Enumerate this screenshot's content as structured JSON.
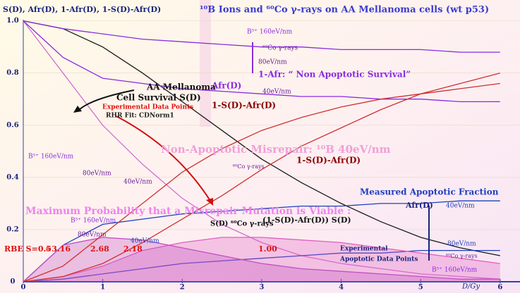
{
  "chart_data": {
    "type": "line",
    "title": "¹⁰B Ions and ⁶⁰Co γ-rays on AA Mellanoma cells (wt p53)",
    "ylabel": "S(D), Afr(D), 1-Afr(D), 1-S(D)-Afr(D)",
    "xlabel": "D/Gy",
    "x": [
      0,
      0.5,
      1,
      1.5,
      2,
      2.5,
      3,
      3.5,
      4,
      4.5,
      5,
      5.5,
      6
    ],
    "xlim": [
      0,
      6.25
    ],
    "ylim": [
      0,
      1.08
    ],
    "xticks": [
      0,
      1,
      2,
      3,
      4,
      5,
      6
    ],
    "yticks": [
      0,
      0.2,
      0.4,
      0.6,
      0.8,
      {
        "value": 1,
        "label": "1.0"
      }
    ],
    "series": [
      {
        "color": "#1a1a1a",
        "fill": false,
        "values": [
          1,
          0.97,
          0.9,
          0.8,
          0.69,
          0.58,
          0.47,
          0.38,
          0.3,
          0.23,
          0.17,
          0.13,
          0.1
        ]
      },
      {
        "color": "#d070d0",
        "fill": false,
        "values": [
          1,
          0.8,
          0.6,
          0.45,
          0.32,
          0.22,
          0.15,
          0.1,
          0.07,
          0.05,
          0.03,
          0.02,
          0.01
        ]
      },
      {
        "color": "#8a2be2",
        "fill": false,
        "values": [
          1,
          0.97,
          0.95,
          0.93,
          0.92,
          0.91,
          0.9,
          0.9,
          0.89,
          0.89,
          0.89,
          0.88,
          0.88
        ]
      },
      {
        "color": "#8a2be2",
        "fill": false,
        "values": [
          1,
          0.86,
          0.78,
          0.76,
          0.74,
          0.73,
          0.72,
          0.71,
          0.71,
          0.7,
          0.7,
          0.69,
          0.69
        ]
      },
      {
        "color": "#1f3fbf",
        "fill": false,
        "values": [
          0,
          0.01,
          0.03,
          0.05,
          0.07,
          0.08,
          0.09,
          0.1,
          0.11,
          0.11,
          0.12,
          0.12,
          0.12
        ]
      },
      {
        "color": "#1f3fbf",
        "fill": false,
        "values": [
          0,
          0.14,
          0.22,
          0.24,
          0.26,
          0.27,
          0.28,
          0.29,
          0.29,
          0.3,
          0.3,
          0.31,
          0.31
        ]
      },
      {
        "color": "#e060c0",
        "fill": true,
        "values": [
          0,
          0.02,
          0.06,
          0.12,
          0.15,
          0.17,
          0.17,
          0.16,
          0.15,
          0.13,
          0.11,
          0.09,
          0.07
        ]
      },
      {
        "color": "#c050c0",
        "fill": true,
        "values": [
          0,
          0.14,
          0.17,
          0.16,
          0.13,
          0.1,
          0.07,
          0.05,
          0.04,
          0.03,
          0.02,
          0.01,
          0.01
        ]
      },
      {
        "color": "#d03030",
        "fill": false,
        "values": [
          0,
          0.02,
          0.07,
          0.15,
          0.24,
          0.33,
          0.43,
          0.52,
          0.59,
          0.66,
          0.72,
          0.76,
          0.8
        ]
      },
      {
        "color": "#d03030",
        "fill": false,
        "values": [
          0,
          0.06,
          0.18,
          0.3,
          0.42,
          0.51,
          0.58,
          0.63,
          0.67,
          0.7,
          0.72,
          0.74,
          0.76
        ]
      }
    ],
    "annotations": [
      {
        "text": "B⁵⁺ 160eV/nm",
        "color": "#8a2be2"
      },
      {
        "text": "⁶⁰Co γ-rays",
        "color": "#6a1b9a"
      },
      {
        "text": "80eV/nm",
        "color": "#6a1b9a"
      },
      {
        "text": "1-Afr: “ Non Apoptotic Survival”",
        "color": "#8a2be2"
      },
      {
        "text": "Afr(D)",
        "color": "#8a2be2"
      },
      {
        "text": "40eV/nm",
        "color": "#6a1b9a"
      },
      {
        "text": "AA Mellanoma",
        "color": "#111111"
      },
      {
        "text": "Cell Survival S(D)",
        "color": "#111111"
      },
      {
        "text": "Experimental Data Points",
        "color": "#e01010"
      },
      {
        "text": "RHR Fit: CDNorm1",
        "color": "#222222"
      },
      {
        "text": "1-S(D)-Afr(D)",
        "color": "#8b0000"
      },
      {
        "text": "B⁵⁺ 160eV/nm",
        "color": "#8a2be2"
      },
      {
        "text": "80eV/nm",
        "color": "#6a1b9a"
      },
      {
        "text": "40eV/nm",
        "color": "#6a1b9a"
      },
      {
        "text": "Non-Apoptotic Misrepair: ¹⁰B 40eV/nm",
        "color": "#f0a0d8"
      },
      {
        "text": "⁶⁰Co γ-rays",
        "color": "#6a1b9a"
      },
      {
        "text": "1-S(D)-Afr(D)",
        "color": "#8b0000"
      },
      {
        "text": "Measured Apoptotic Fraction",
        "color": "#1f3fbf"
      },
      {
        "text": "Afr(D)",
        "color": "#1a237e"
      },
      {
        "text": "40eV/nm",
        "color": "#1f3fbf"
      },
      {
        "text": "Maximum Probability  that a Misrepair Mutation is Viable :",
        "color": "#ee82ee"
      },
      {
        "text": "B⁵⁺ 160eV/nm",
        "color": "#8a2be2"
      },
      {
        "text": "80eV/nm",
        "color": "#6a1b9a"
      },
      {
        "text": "40eV/nm",
        "color": "#1f3fbf"
      },
      {
        "text": "S(D) ⁶⁰Co γ-rays",
        "color": "#111111"
      },
      {
        "text": "(1-S(D)-Afr(D)) S(D)",
        "color": "#111111"
      },
      {
        "text": "RBE S=0.5",
        "color": "#e01010"
      },
      {
        "text": "≈3.16",
        "color": "#e01010"
      },
      {
        "text": "2.68",
        "color": "#e01010"
      },
      {
        "text": "2.18",
        "color": "#e01010"
      },
      {
        "text": "1.00",
        "color": "#e01010"
      },
      {
        "text": "Experimental",
        "color": "#1a237e"
      },
      {
        "text": "Apoptotic Data Points",
        "color": "#1a237e"
      },
      {
        "text": "80eV/nm",
        "color": "#1f3fbf"
      },
      {
        "text": "⁶⁰Co γ-rays",
        "color": "#6a1b9a"
      },
      {
        "text": "B⁵⁺ 160eV/nm",
        "color": "#8a2be2"
      }
    ]
  }
}
